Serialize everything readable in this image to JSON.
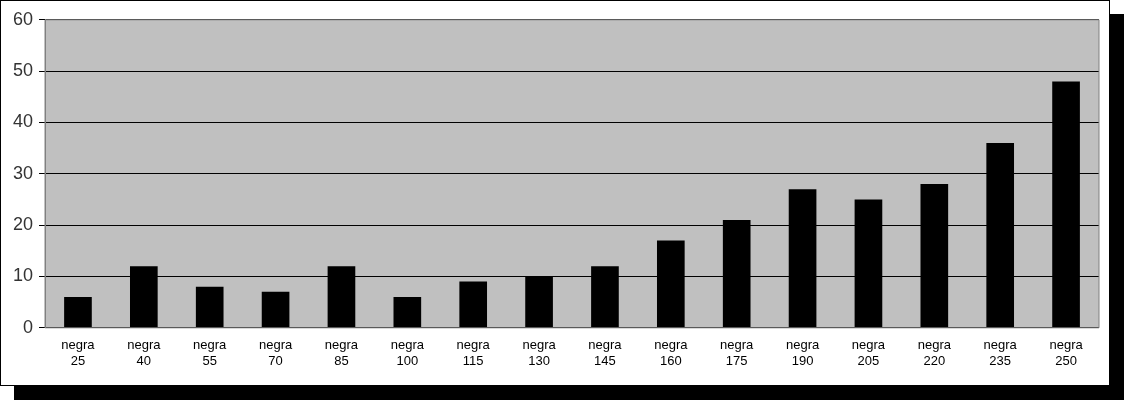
{
  "chart_data": {
    "type": "bar",
    "categories": [
      "negra 25",
      "negra 40",
      "negra 55",
      "negra 70",
      "negra 85",
      "negra 100",
      "negra 115",
      "negra 130",
      "negra 145",
      "negra 160",
      "negra 175",
      "negra 190",
      "negra 205",
      "negra 220",
      "negra 235",
      "negra 250"
    ],
    "values": [
      6,
      12,
      8,
      7,
      12,
      6,
      9,
      10,
      12,
      17,
      21,
      27,
      25,
      28,
      36,
      48
    ],
    "color": "#000000",
    "ylim": [
      0,
      60
    ],
    "yticks": [
      0,
      10,
      20,
      30,
      40,
      50,
      60
    ],
    "grid": "y",
    "legend": false
  }
}
